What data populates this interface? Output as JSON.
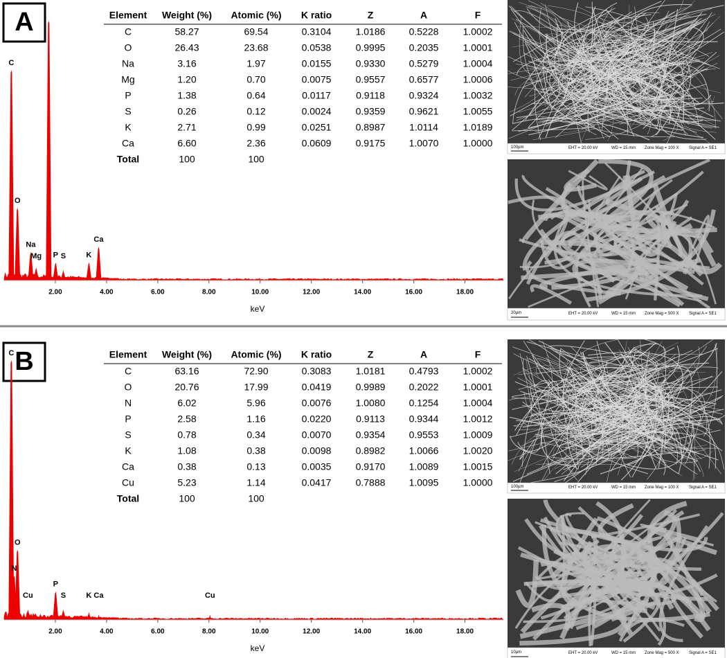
{
  "panels": [
    {
      "label": "A",
      "table": {
        "columns": [
          "Element",
          "Weight (%)",
          "Atomic (%)",
          "K ratio",
          "Z",
          "A",
          "F"
        ],
        "rows": [
          [
            "C",
            "58.27",
            "69.54",
            "0.3104",
            "1.0186",
            "0.5228",
            "1.0002"
          ],
          [
            "O",
            "26.43",
            "23.68",
            "0.0538",
            "0.9995",
            "0.2035",
            "1.0001"
          ],
          [
            "Na",
            "3.16",
            "1.97",
            "0.0155",
            "0.9330",
            "0.5279",
            "1.0004"
          ],
          [
            "Mg",
            "1.20",
            "0.70",
            "0.0075",
            "0.9557",
            "0.6577",
            "1.0006"
          ],
          [
            "P",
            "1.38",
            "0.64",
            "0.0117",
            "0.9118",
            "0.9324",
            "1.0032"
          ],
          [
            "S",
            "0.26",
            "0.12",
            "0.0024",
            "0.9359",
            "0.9621",
            "1.0055"
          ],
          [
            "K",
            "2.71",
            "0.99",
            "0.0251",
            "0.8987",
            "1.0114",
            "1.0189"
          ],
          [
            "Ca",
            "6.60",
            "2.36",
            "0.0609",
            "0.9175",
            "1.0070",
            "1.0000"
          ],
          [
            "Total",
            "100",
            "100"
          ]
        ]
      },
      "spectrum": {
        "xlabel": "keV",
        "xlim": [
          0,
          19.5
        ],
        "ylim": [
          0,
          100
        ],
        "xticks": [
          {
            "value": 2,
            "label": "2.00"
          },
          {
            "value": 4,
            "label": "4.00"
          },
          {
            "value": 6,
            "label": "6.00"
          },
          {
            "value": 8,
            "label": "8.00"
          },
          {
            "value": 10,
            "label": "10.00"
          },
          {
            "value": 12,
            "label": "12.00"
          },
          {
            "value": 14,
            "label": "14.00"
          },
          {
            "value": 16,
            "label": "16.00"
          },
          {
            "value": 18,
            "label": "18.00"
          }
        ],
        "peaks": [
          {
            "label": "C",
            "x": 0.28,
            "height": 81
          },
          {
            "label": "O",
            "x": 0.52,
            "height": 28
          },
          {
            "label": "Na",
            "x": 1.04,
            "height": 11
          },
          {
            "label": "Mg",
            "x": 1.25,
            "height": 5
          },
          {
            "label": null,
            "x": 1.74,
            "height": 100
          },
          {
            "label": "P",
            "x": 2.01,
            "height": 7
          },
          {
            "label": "S",
            "x": 2.31,
            "height": 4
          },
          {
            "label": "K",
            "x": 3.31,
            "height": 7
          },
          {
            "label": "Ca",
            "x": 3.69,
            "height": 13
          }
        ]
      },
      "images": [
        {
          "scale": "100µm",
          "eht": "EHT = 20.00 kV",
          "wd": "WD = 15 mm",
          "mag": "Zone Mag = 100 X",
          "signal": "Signal A = SE1"
        },
        {
          "scale": "20µm",
          "eht": "EHT = 20.00 kV",
          "wd": "WD = 15 mm",
          "mag": "Zone Mag = 500 X",
          "signal": "Signal A = SE1"
        }
      ]
    },
    {
      "label": "B",
      "table": {
        "columns": [
          "Element",
          "Weight (%)",
          "Atomic (%)",
          "K ratio",
          "Z",
          "A",
          "F"
        ],
        "rows": [
          [
            "C",
            "63.16",
            "72.90",
            "0.3083",
            "1.0181",
            "0.4793",
            "1.0002"
          ],
          [
            "O",
            "20.76",
            "17.99",
            "0.0419",
            "0.9989",
            "0.2022",
            "1.0001"
          ],
          [
            "N",
            "6.02",
            "5.96",
            "0.0076",
            "1.0080",
            "0.1254",
            "1.0004"
          ],
          [
            "P",
            "2.58",
            "1.16",
            "0.0220",
            "0.9113",
            "0.9344",
            "1.0012"
          ],
          [
            "S",
            "0.78",
            "0.34",
            "0.0070",
            "0.9354",
            "0.9553",
            "1.0009"
          ],
          [
            "K",
            "1.08",
            "0.38",
            "0.0098",
            "0.8982",
            "1.0066",
            "1.0020"
          ],
          [
            "Ca",
            "0.38",
            "0.13",
            "0.0035",
            "0.9170",
            "1.0089",
            "1.0015"
          ],
          [
            "Cu",
            "5.23",
            "1.14",
            "0.0417",
            "0.7888",
            "1.0095",
            "1.0000"
          ],
          [
            "Total",
            "100",
            "100"
          ]
        ]
      },
      "spectrum": {
        "xlabel": "keV",
        "xlim": [
          0,
          19.5
        ],
        "ylim": [
          0,
          100
        ],
        "xticks": [
          {
            "value": 2,
            "label": "2.00"
          },
          {
            "value": 4,
            "label": "4.00"
          },
          {
            "value": 6,
            "label": "6.00"
          },
          {
            "value": 8,
            "label": "8.00"
          },
          {
            "value": 10,
            "label": "10.00"
          },
          {
            "value": 12,
            "label": "12.00"
          },
          {
            "value": 14,
            "label": "14.00"
          },
          {
            "value": 16,
            "label": "16.00"
          },
          {
            "value": 18,
            "label": "18.00"
          }
        ],
        "peaks": [
          {
            "label": "C",
            "x": 0.28,
            "height": 100
          },
          {
            "label": "N",
            "x": 0.39,
            "height": 17
          },
          {
            "label": "O",
            "x": 0.52,
            "height": 27
          },
          {
            "label": "Cu",
            "x": 0.93,
            "height": 4
          },
          {
            "label": "P",
            "x": 2.01,
            "height": 11
          },
          {
            "label": "S",
            "x": 2.31,
            "height": 4
          },
          {
            "label": "K",
            "x": 3.31,
            "height": 3
          },
          {
            "label": "Ca",
            "x": 3.69,
            "height": 2
          },
          {
            "label": "Cu",
            "x": 8.04,
            "height": 2
          }
        ]
      },
      "images": [
        {
          "scale": "100µm",
          "eht": "EHT = 20.00 kV",
          "wd": "WD = 15 mm",
          "mag": "Zone Mag = 100 X",
          "signal": "Signal A = SE1"
        },
        {
          "scale": "10µm",
          "eht": "EHT = 20.00 kV",
          "wd": "WD = 15 mm",
          "mag": "Zone Mag = 500 X",
          "signal": "Signal A = SE1"
        }
      ]
    }
  ]
}
